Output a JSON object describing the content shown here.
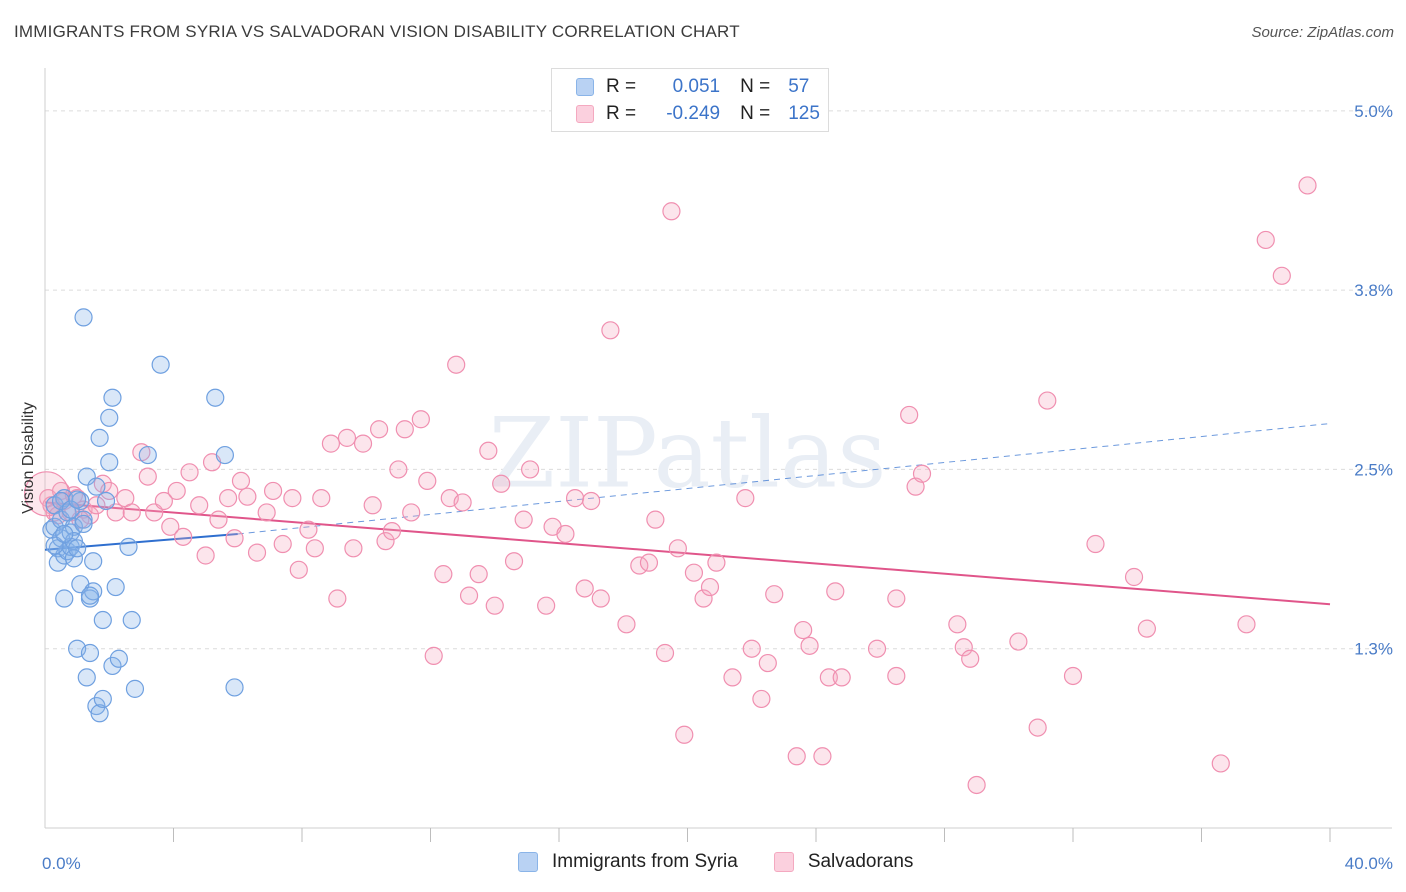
{
  "title": "IMMIGRANTS FROM SYRIA VS SALVADORAN VISION DISABILITY CORRELATION CHART",
  "source": "Source: ZipAtlas.com",
  "watermark": "ZIPatlas",
  "legend": {
    "rows": [
      {
        "r_label": "R =",
        "r_value": "0.051",
        "n_label": "N =",
        "n_value": "57",
        "color": "#8ab4e8"
      },
      {
        "r_label": "R =",
        "r_value": "-0.249",
        "n_label": "N =",
        "n_value": "125",
        "color": "#f4a9c0"
      }
    ]
  },
  "bottom_legend": [
    "Immigrants from Syria",
    "Salvadorans"
  ],
  "chart_data": {
    "type": "scatter",
    "title": "IMMIGRANTS FROM SYRIA VS SALVADORAN VISION DISABILITY CORRELATION CHART",
    "xlabel": "",
    "ylabel": "Vision Disability",
    "xlim": [
      0,
      40
    ],
    "ylim": [
      0,
      5.25
    ],
    "x_tick_labels": [
      "0.0%",
      "40.0%"
    ],
    "y_ticks": [
      1.25,
      2.5,
      3.75,
      5.0
    ],
    "y_tick_labels": [
      "1.3%",
      "2.5%",
      "3.8%",
      "5.0%"
    ],
    "grid": "horizontal dashed",
    "colors": {
      "syria": "#6fa0e0",
      "syria_line": "#2f6fcf",
      "salvadoran": "#f08fb0",
      "salvadoran_line": "#e0558a"
    },
    "series": [
      {
        "name": "Immigrants from Syria",
        "trend": {
          "x0": 0,
          "y0": 1.94,
          "x1": 6.0,
          "y1": 2.05,
          "x_end": 40,
          "y_end": 2.82
        },
        "points": [
          [
            0.2,
            2.08
          ],
          [
            0.3,
            2.25
          ],
          [
            0.3,
            2.1
          ],
          [
            0.4,
            1.95
          ],
          [
            0.4,
            1.85
          ],
          [
            0.5,
            2.15
          ],
          [
            0.5,
            2.02
          ],
          [
            0.6,
            1.9
          ],
          [
            0.6,
            1.6
          ],
          [
            0.6,
            2.3
          ],
          [
            0.7,
            2.2
          ],
          [
            0.7,
            1.93
          ],
          [
            0.8,
            2.06
          ],
          [
            0.8,
            1.96
          ],
          [
            0.9,
            1.88
          ],
          [
            0.9,
            2.1
          ],
          [
            0.9,
            2.0
          ],
          [
            1.0,
            1.95
          ],
          [
            1.0,
            1.25
          ],
          [
            1.1,
            1.7
          ],
          [
            1.1,
            2.28
          ],
          [
            1.2,
            2.15
          ],
          [
            1.2,
            2.12
          ],
          [
            1.3,
            1.05
          ],
          [
            1.2,
            3.56
          ],
          [
            1.3,
            2.45
          ],
          [
            1.4,
            1.6
          ],
          [
            1.4,
            1.22
          ],
          [
            1.5,
            1.65
          ],
          [
            1.5,
            1.86
          ],
          [
            1.6,
            2.38
          ],
          [
            1.6,
            0.85
          ],
          [
            1.7,
            0.8
          ],
          [
            1.7,
            2.72
          ],
          [
            1.8,
            1.45
          ],
          [
            1.8,
            0.9
          ],
          [
            1.9,
            2.28
          ],
          [
            2.0,
            2.86
          ],
          [
            2.0,
            2.55
          ],
          [
            2.1,
            1.13
          ],
          [
            2.1,
            3.0
          ],
          [
            2.2,
            1.68
          ],
          [
            2.3,
            1.18
          ],
          [
            2.6,
            1.96
          ],
          [
            2.7,
            1.45
          ],
          [
            2.8,
            0.97
          ],
          [
            3.2,
            2.6
          ],
          [
            3.6,
            3.23
          ],
          [
            5.3,
            3.0
          ],
          [
            5.6,
            2.6
          ],
          [
            5.9,
            0.98
          ],
          [
            0.3,
            1.97
          ],
          [
            0.5,
            2.28
          ],
          [
            0.8,
            2.22
          ],
          [
            1.0,
            2.29
          ],
          [
            1.4,
            1.62
          ],
          [
            0.6,
            2.05
          ]
        ]
      },
      {
        "name": "Salvadorans",
        "trend": {
          "x0": 0,
          "y0": 2.27,
          "x1": 40,
          "y1": 1.56
        },
        "points": [
          [
            0.1,
            2.3
          ],
          [
            0.2,
            2.25
          ],
          [
            0.3,
            2.2
          ],
          [
            0.5,
            2.35
          ],
          [
            0.6,
            2.28
          ],
          [
            0.8,
            2.2
          ],
          [
            0.9,
            2.32
          ],
          [
            1.0,
            2.3
          ],
          [
            1.2,
            2.22
          ],
          [
            1.4,
            2.18
          ],
          [
            1.6,
            2.25
          ],
          [
            1.8,
            2.4
          ],
          [
            2.0,
            2.35
          ],
          [
            2.2,
            2.2
          ],
          [
            2.5,
            2.3
          ],
          [
            2.7,
            2.2
          ],
          [
            3.0,
            2.62
          ],
          [
            3.2,
            2.45
          ],
          [
            3.4,
            2.2
          ],
          [
            3.7,
            2.28
          ],
          [
            3.9,
            2.1
          ],
          [
            4.1,
            2.35
          ],
          [
            4.3,
            2.03
          ],
          [
            4.5,
            2.48
          ],
          [
            4.8,
            2.25
          ],
          [
            5.0,
            1.9
          ],
          [
            5.2,
            2.55
          ],
          [
            5.4,
            2.15
          ],
          [
            5.7,
            2.3
          ],
          [
            5.9,
            2.02
          ],
          [
            6.1,
            2.42
          ],
          [
            6.3,
            2.31
          ],
          [
            6.6,
            1.92
          ],
          [
            6.9,
            2.2
          ],
          [
            7.1,
            2.35
          ],
          [
            7.4,
            1.98
          ],
          [
            7.7,
            2.3
          ],
          [
            7.9,
            1.8
          ],
          [
            8.2,
            2.08
          ],
          [
            8.4,
            1.95
          ],
          [
            8.6,
            2.3
          ],
          [
            8.9,
            2.68
          ],
          [
            9.1,
            1.6
          ],
          [
            9.4,
            2.72
          ],
          [
            9.6,
            1.95
          ],
          [
            9.9,
            2.68
          ],
          [
            10.2,
            2.25
          ],
          [
            10.4,
            2.78
          ],
          [
            10.6,
            2.0
          ],
          [
            10.8,
            2.07
          ],
          [
            11.0,
            2.5
          ],
          [
            11.2,
            2.78
          ],
          [
            11.4,
            2.2
          ],
          [
            11.7,
            2.85
          ],
          [
            11.9,
            2.42
          ],
          [
            12.1,
            1.2
          ],
          [
            12.4,
            1.77
          ],
          [
            12.6,
            2.3
          ],
          [
            12.8,
            3.23
          ],
          [
            13.0,
            2.27
          ],
          [
            13.2,
            1.62
          ],
          [
            13.5,
            1.77
          ],
          [
            13.8,
            2.63
          ],
          [
            14.0,
            1.55
          ],
          [
            14.2,
            2.4
          ],
          [
            14.6,
            1.86
          ],
          [
            14.9,
            2.15
          ],
          [
            15.1,
            2.5
          ],
          [
            15.6,
            1.55
          ],
          [
            15.8,
            2.1
          ],
          [
            16.2,
            2.05
          ],
          [
            16.5,
            2.3
          ],
          [
            16.8,
            1.67
          ],
          [
            17.0,
            2.28
          ],
          [
            17.3,
            1.6
          ],
          [
            17.6,
            3.47
          ],
          [
            18.1,
            1.42
          ],
          [
            18.5,
            1.83
          ],
          [
            18.8,
            1.85
          ],
          [
            19.0,
            2.15
          ],
          [
            19.3,
            1.22
          ],
          [
            19.5,
            4.3
          ],
          [
            19.7,
            1.95
          ],
          [
            19.9,
            0.65
          ],
          [
            20.2,
            1.78
          ],
          [
            20.5,
            1.6
          ],
          [
            20.7,
            1.68
          ],
          [
            20.9,
            1.85
          ],
          [
            21.4,
            1.05
          ],
          [
            21.8,
            2.3
          ],
          [
            22.0,
            1.25
          ],
          [
            22.3,
            0.9
          ],
          [
            22.5,
            1.15
          ],
          [
            22.7,
            1.63
          ],
          [
            23.4,
            0.5
          ],
          [
            23.6,
            1.38
          ],
          [
            23.8,
            1.27
          ],
          [
            24.2,
            0.5
          ],
          [
            24.4,
            1.05
          ],
          [
            24.6,
            1.65
          ],
          [
            24.8,
            1.05
          ],
          [
            25.9,
            1.25
          ],
          [
            26.5,
            1.6
          ],
          [
            26.5,
            1.06
          ],
          [
            26.9,
            2.88
          ],
          [
            27.1,
            2.38
          ],
          [
            27.3,
            2.47
          ],
          [
            28.4,
            1.42
          ],
          [
            28.6,
            1.26
          ],
          [
            28.8,
            1.18
          ],
          [
            29.0,
            0.3
          ],
          [
            30.3,
            1.3
          ],
          [
            30.9,
            0.7
          ],
          [
            31.2,
            2.98
          ],
          [
            32.0,
            1.06
          ],
          [
            32.7,
            1.98
          ],
          [
            33.9,
            1.75
          ],
          [
            34.3,
            1.39
          ],
          [
            36.6,
            0.45
          ],
          [
            37.4,
            1.42
          ],
          [
            38.0,
            4.1
          ],
          [
            38.5,
            3.85
          ],
          [
            39.3,
            4.48
          ],
          [
            0.4,
            2.18
          ],
          [
            1.1,
            2.15
          ]
        ]
      }
    ]
  }
}
